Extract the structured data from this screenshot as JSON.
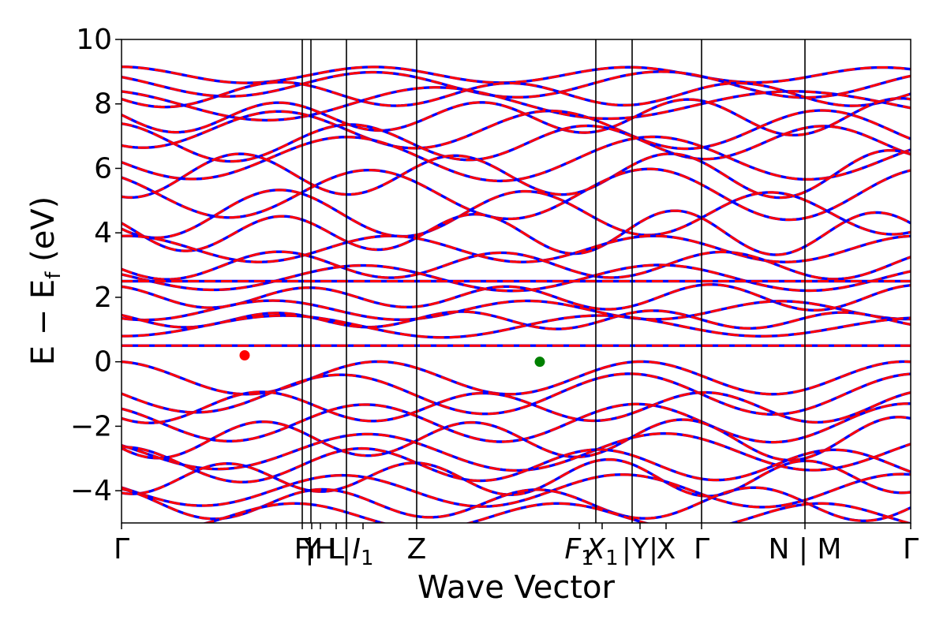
{
  "chart_data": {
    "type": "line",
    "xlabel": "Wave Vector",
    "ylabel": "E − E",
    "ylabel_sub": "f",
    "ylabel_unit": " (eV)",
    "ylim": [
      -5,
      10
    ],
    "xlim": [
      0,
      1
    ],
    "y_ticks": [
      {
        "value": 10,
        "label": "10"
      },
      {
        "value": 8,
        "label": "8"
      },
      {
        "value": 6,
        "label": "6"
      },
      {
        "value": 4,
        "label": "4"
      },
      {
        "value": 2,
        "label": "2"
      },
      {
        "value": 0,
        "label": "0"
      },
      {
        "value": -2,
        "label": "−2"
      },
      {
        "value": -4,
        "label": "−4"
      }
    ],
    "x_ticks": [
      {
        "value": 0.0,
        "label": "Γ",
        "sub": ""
      },
      {
        "value": 0.229,
        "label": "F",
        "sub": ""
      },
      {
        "value": 0.241,
        "label": "Y",
        "sub": ""
      },
      {
        "value": 0.252,
        "label": "|H",
        "sub": ""
      },
      {
        "value": 0.272,
        "label": "L",
        "sub": ""
      },
      {
        "value": 0.285,
        "label": "|",
        "sub": ""
      },
      {
        "value": 0.306,
        "label": "I",
        "sub": "1"
      },
      {
        "value": 0.374,
        "label": "Z",
        "sub": ""
      },
      {
        "value": 0.58,
        "label": "F",
        "sub": "1"
      },
      {
        "value": 0.609,
        "label": "X",
        "sub": "1"
      },
      {
        "value": 0.657,
        "label": "|Y|",
        "sub": ""
      },
      {
        "value": 0.69,
        "label": "X",
        "sub": ""
      },
      {
        "value": 0.735,
        "label": "Γ",
        "sub": ""
      },
      {
        "value": 0.866,
        "label": "N | M",
        "sub": ""
      },
      {
        "value": 1.0,
        "label": "Γ",
        "sub": ""
      }
    ],
    "vertical_lines": [
      0.229,
      0.24,
      0.285,
      0.374,
      0.601,
      0.647,
      0.735,
      0.866
    ],
    "series": [
      {
        "color": "#0000ff",
        "style": "solid"
      },
      {
        "color": "#ff0000",
        "style": "dashed"
      }
    ],
    "flat_bands": [
      0.5,
      2.5
    ],
    "bands": [
      {
        "base": 8.9,
        "amp": 0.25,
        "freq": 3.1,
        "phase": 0.2
      },
      {
        "base": 8.6,
        "amp": 0.35,
        "freq": 2.7,
        "phase": 1.0
      },
      {
        "base": 8.3,
        "amp": 0.4,
        "freq": 3.4,
        "phase": 2.1
      },
      {
        "base": 8.0,
        "amp": 0.45,
        "freq": 2.2,
        "phase": 0.7
      },
      {
        "base": 7.6,
        "amp": 0.5,
        "freq": 3.8,
        "phase": 1.6
      },
      {
        "base": 7.2,
        "amp": 0.55,
        "freq": 2.9,
        "phase": 2.8
      },
      {
        "base": 6.8,
        "amp": 0.6,
        "freq": 3.3,
        "phase": 0.4
      },
      {
        "base": 6.3,
        "amp": 0.6,
        "freq": 2.5,
        "phase": 1.9
      },
      {
        "base": 5.8,
        "amp": 0.7,
        "freq": 3.6,
        "phase": 3.0
      },
      {
        "base": 5.2,
        "amp": 0.7,
        "freq": 2.8,
        "phase": 0.9
      },
      {
        "base": 4.6,
        "amp": 0.75,
        "freq": 3.2,
        "phase": 2.4
      },
      {
        "base": 4.0,
        "amp": 0.6,
        "freq": 4.0,
        "phase": 1.2
      },
      {
        "base": 3.5,
        "amp": 0.4,
        "freq": 3.0,
        "phase": 0.0
      },
      {
        "base": 3.0,
        "amp": 0.45,
        "freq": 3.5,
        "phase": 2.0
      },
      {
        "base": 2.6,
        "amp": 0.35,
        "freq": 2.6,
        "phase": 1.4
      },
      {
        "base": 2.0,
        "amp": 0.35,
        "freq": 3.9,
        "phase": 0.5
      },
      {
        "base": 1.6,
        "amp": 0.3,
        "freq": 3.1,
        "phase": 2.7
      },
      {
        "base": 1.3,
        "amp": 0.25,
        "freq": 4.2,
        "phase": 1.1
      },
      {
        "base": 1.1,
        "amp": 0.3,
        "freq": 2.4,
        "phase": 3.3
      },
      {
        "base": -0.5,
        "amp": 0.5,
        "freq": 3.0,
        "phase": 0.3
      },
      {
        "base": -1.0,
        "amp": 0.55,
        "freq": 2.7,
        "phase": 1.7
      },
      {
        "base": -1.4,
        "amp": 0.5,
        "freq": 3.5,
        "phase": 2.5
      },
      {
        "base": -1.9,
        "amp": 0.55,
        "freq": 2.9,
        "phase": 0.8
      },
      {
        "base": -2.4,
        "amp": 0.6,
        "freq": 3.7,
        "phase": 2.2
      },
      {
        "base": -2.8,
        "amp": 0.5,
        "freq": 2.6,
        "phase": 1.3
      },
      {
        "base": -3.2,
        "amp": 0.55,
        "freq": 3.3,
        "phase": 0.1
      },
      {
        "base": -3.6,
        "amp": 0.5,
        "freq": 4.1,
        "phase": 2.9
      },
      {
        "base": -4.0,
        "amp": 0.45,
        "freq": 2.8,
        "phase": 1.5
      },
      {
        "base": -4.4,
        "amp": 0.5,
        "freq": 3.6,
        "phase": 0.6
      },
      {
        "base": -4.8,
        "amp": 0.4,
        "freq": 3.0,
        "phase": 2.3
      }
    ],
    "markers": [
      {
        "x": 0.156,
        "y": 0.2,
        "color": "#ff0000"
      },
      {
        "x": 0.53,
        "y": 0.0,
        "color": "#008000"
      }
    ]
  }
}
